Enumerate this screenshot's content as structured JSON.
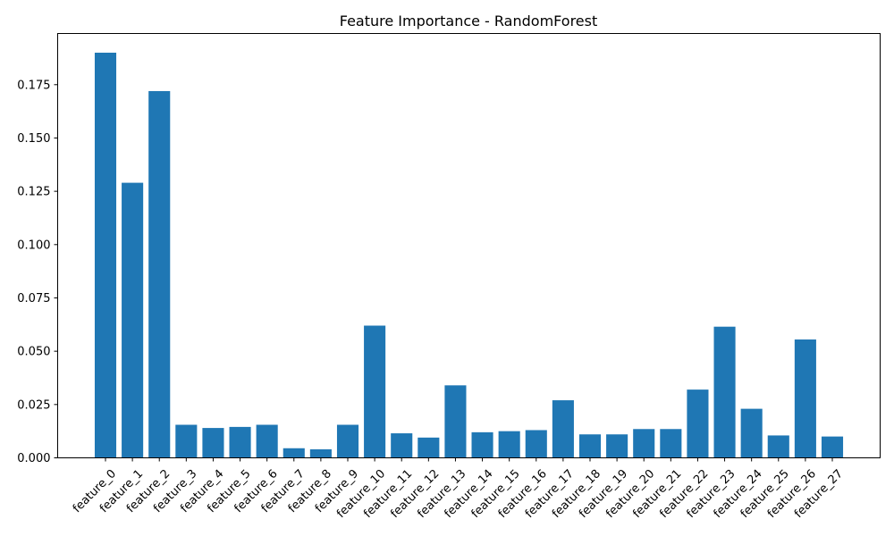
{
  "chart_data": {
    "type": "bar",
    "title": "Feature Importance - RandomForest",
    "xlabel": "",
    "ylabel": "",
    "ylim": [
      0,
      0.199
    ],
    "yticks": [
      "0.000",
      "0.025",
      "0.050",
      "0.075",
      "0.100",
      "0.125",
      "0.150",
      "0.175"
    ],
    "ytick_values": [
      0.0,
      0.025,
      0.05,
      0.075,
      0.1,
      0.125,
      0.15,
      0.175
    ],
    "bar_color": "#1f77b4",
    "grid": false,
    "categories": [
      "feature_0",
      "feature_1",
      "feature_2",
      "feature_3",
      "feature_4",
      "feature_5",
      "feature_6",
      "feature_7",
      "feature_8",
      "feature_9",
      "feature_10",
      "feature_11",
      "feature_12",
      "feature_13",
      "feature_14",
      "feature_15",
      "feature_16",
      "feature_17",
      "feature_18",
      "feature_19",
      "feature_20",
      "feature_21",
      "feature_22",
      "feature_23",
      "feature_24",
      "feature_25",
      "feature_26",
      "feature_27"
    ],
    "values": [
      0.19,
      0.129,
      0.172,
      0.0155,
      0.014,
      0.0145,
      0.0155,
      0.0045,
      0.004,
      0.0155,
      0.062,
      0.0115,
      0.0095,
      0.034,
      0.012,
      0.0125,
      0.013,
      0.027,
      0.011,
      0.011,
      0.0135,
      0.0135,
      0.032,
      0.0615,
      0.023,
      0.0105,
      0.0555,
      0.01
    ]
  }
}
